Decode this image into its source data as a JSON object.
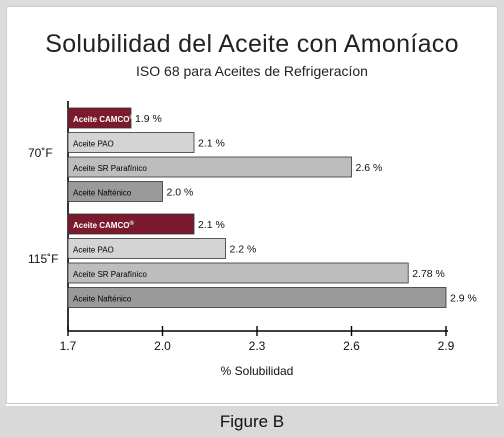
{
  "figure": {
    "caption": "Figure B"
  },
  "chart_data": {
    "type": "bar",
    "orientation": "horizontal",
    "title": "Solubilidad del Aceite con Amoníaco",
    "subtitle": "ISO 68 para Aceites de Refrigeracíon",
    "xlabel": "% Solubilidad",
    "ylabel": "",
    "xlim": [
      1.7,
      2.9
    ],
    "xticks": [
      "1.7",
      "2.0",
      "2.3",
      "2.6",
      "2.9"
    ],
    "tick_values": [
      1.7,
      2.0,
      2.3,
      2.6,
      2.9
    ],
    "groups": [
      {
        "label": "70˚F",
        "bars": [
          {
            "category": "Aceite CAMCO",
            "superscript": "®",
            "value": 1.9,
            "value_label": "1.9 %",
            "color": "#7a1a2c",
            "text_color": "#ffffff"
          },
          {
            "category": "Aceite PAO",
            "superscript": "",
            "value": 2.1,
            "value_label": "2.1 %",
            "color": "#d4d4d4",
            "text_color": "#000000"
          },
          {
            "category": "Aceite SR Parafínico",
            "superscript": "",
            "value": 2.6,
            "value_label": "2.6 %",
            "color": "#bdbdbd",
            "text_color": "#000000"
          },
          {
            "category": "Aceite Nafténico",
            "superscript": "",
            "value": 2.0,
            "value_label": "2.0 %",
            "color": "#9a9a9a",
            "text_color": "#000000"
          }
        ]
      },
      {
        "label": "115˚F",
        "bars": [
          {
            "category": "Aceite CAMCO",
            "superscript": "®",
            "value": 2.1,
            "value_label": "2.1 %",
            "color": "#7a1a2c",
            "text_color": "#ffffff"
          },
          {
            "category": "Aceite PAO",
            "superscript": "",
            "value": 2.2,
            "value_label": "2.2 %",
            "color": "#d4d4d4",
            "text_color": "#000000"
          },
          {
            "category": "Aceite SR Parafínico",
            "superscript": "",
            "value": 2.78,
            "value_label": "2.78 %",
            "color": "#bdbdbd",
            "text_color": "#000000"
          },
          {
            "category": "Aceite Nafténico",
            "superscript": "",
            "value": 2.9,
            "value_label": "2.9 %",
            "color": "#9a9a9a",
            "text_color": "#000000"
          }
        ]
      }
    ],
    "grid": false,
    "legend": "none"
  }
}
